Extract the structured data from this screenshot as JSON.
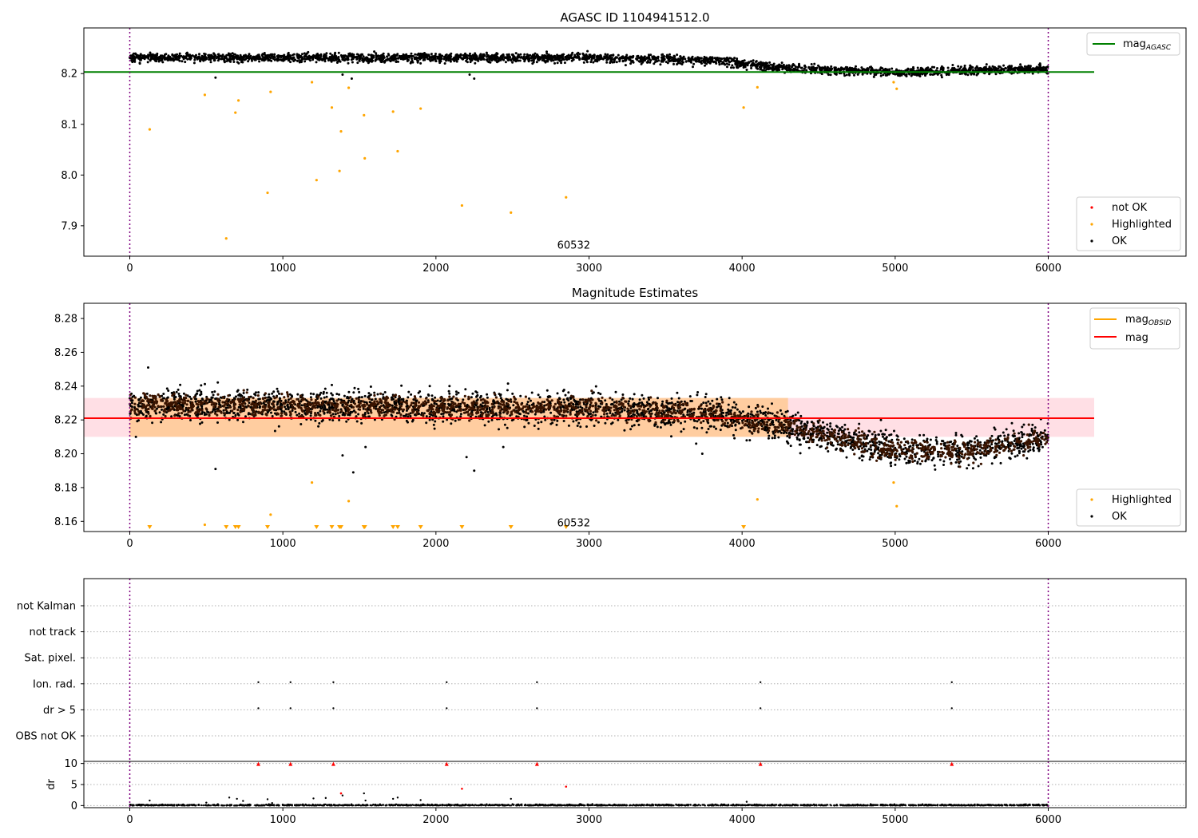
{
  "chart_data": [
    {
      "type": "scatter",
      "title": "AGASC ID 1104941512.0",
      "xlim": [
        -300,
        6900
      ],
      "ylim": [
        7.84,
        8.29
      ],
      "xticks": [
        "0",
        "1000",
        "2000",
        "3000",
        "4000",
        "5000",
        "6000"
      ],
      "yticks": [
        "7.9",
        "8.0",
        "8.1",
        "8.2"
      ],
      "ytick_values": [
        7.9,
        8.0,
        8.1,
        8.2
      ],
      "vlines": [
        0,
        6000
      ],
      "hline": {
        "name": "mag_AGASC",
        "value": 8.203,
        "x_range": [
          -300,
          6300
        ],
        "color": "#008000"
      },
      "annotation": {
        "text": "60532",
        "x": 2900,
        "y": 7.855
      },
      "ok_trend": [
        [
          0,
          8.232
        ],
        [
          3000,
          8.231
        ],
        [
          3800,
          8.226
        ],
        [
          4300,
          8.21
        ],
        [
          5000,
          8.203
        ],
        [
          6000,
          8.21
        ]
      ],
      "ok_outliers": [
        [
          560,
          8.192
        ],
        [
          1390,
          8.198
        ],
        [
          1450,
          8.19
        ],
        [
          2220,
          8.198
        ],
        [
          2250,
          8.19
        ]
      ],
      "series": [
        {
          "name": "not OK",
          "color": "#ff0000",
          "points": []
        },
        {
          "name": "Highlighted",
          "color": "#ffa500",
          "points": [
            [
              130,
              8.09
            ],
            [
              490,
              8.158
            ],
            [
              630,
              7.875
            ],
            [
              690,
              8.123
            ],
            [
              710,
              8.147
            ],
            [
              900,
              7.965
            ],
            [
              920,
              8.164
            ],
            [
              1190,
              8.183
            ],
            [
              1220,
              7.99
            ],
            [
              1320,
              8.133
            ],
            [
              1370,
              8.008
            ],
            [
              1380,
              8.086
            ],
            [
              1430,
              8.172
            ],
            [
              1530,
              8.118
            ],
            [
              1535,
              8.033
            ],
            [
              1720,
              8.125
            ],
            [
              1750,
              8.047
            ],
            [
              1900,
              8.131
            ],
            [
              2170,
              7.94
            ],
            [
              2490,
              7.926
            ],
            [
              2850,
              7.956
            ],
            [
              4010,
              8.133
            ],
            [
              4100,
              8.173
            ],
            [
              4990,
              8.183
            ],
            [
              5010,
              8.17
            ]
          ]
        },
        {
          "name": "OK",
          "color": "#000000",
          "points": []
        }
      ],
      "legend_upper": [
        "mag_AGASC"
      ],
      "legend_lower": [
        "not OK",
        "Highlighted",
        "OK"
      ]
    },
    {
      "type": "scatter",
      "title": "Magnitude Estimates",
      "xlim": [
        -300,
        6900
      ],
      "ylim": [
        8.154,
        8.289
      ],
      "xticks": [
        "0",
        "1000",
        "2000",
        "3000",
        "4000",
        "5000",
        "6000"
      ],
      "yticks": [
        "8.16",
        "8.18",
        "8.20",
        "8.22",
        "8.24",
        "8.26",
        "8.28"
      ],
      "ytick_values": [
        8.16,
        8.18,
        8.2,
        8.22,
        8.24,
        8.26,
        8.28
      ],
      "vlines": [
        0,
        6000
      ],
      "mag_line": {
        "name": "mag",
        "value": 8.221,
        "x_range": [
          -300,
          6300
        ],
        "color": "#ff0000"
      },
      "band": {
        "low": 8.21,
        "high": 8.233,
        "x_range": [
          -300,
          6300
        ]
      },
      "obsid_band": {
        "low": 8.21,
        "high": 8.233,
        "x_range": [
          0,
          4300
        ]
      },
      "annotation": {
        "text": "60532",
        "x": 2900,
        "y": 8.157
      },
      "ok_trend": [
        [
          0,
          8.229
        ],
        [
          3000,
          8.227
        ],
        [
          3800,
          8.224
        ],
        [
          4300,
          8.216
        ],
        [
          5000,
          8.202
        ],
        [
          5500,
          8.202
        ],
        [
          6000,
          8.21
        ]
      ],
      "ok_outliers": [
        [
          40,
          8.21
        ],
        [
          120,
          8.251
        ],
        [
          560,
          8.191
        ],
        [
          1390,
          8.199
        ],
        [
          1460,
          8.189
        ],
        [
          1540,
          8.204
        ],
        [
          2200,
          8.198
        ],
        [
          2250,
          8.19
        ],
        [
          2440,
          8.204
        ],
        [
          3700,
          8.206
        ],
        [
          3740,
          8.2
        ]
      ],
      "highlighted": [
        [
          490,
          8.158
        ],
        [
          920,
          8.164
        ],
        [
          1190,
          8.183
        ],
        [
          1430,
          8.172
        ],
        [
          4100,
          8.173
        ],
        [
          4990,
          8.183
        ],
        [
          5010,
          8.169
        ]
      ],
      "clipped_markers_x": [
        130,
        630,
        690,
        710,
        900,
        1220,
        1320,
        1370,
        1380,
        1530,
        1535,
        1720,
        1750,
        1900,
        2170,
        2490,
        2850,
        4010
      ],
      "legend_upper": [
        "mag_OBSID",
        "mag"
      ],
      "legend_lower": [
        "Highlighted",
        "OK"
      ]
    },
    {
      "type": "scatter",
      "xlim": [
        -300,
        6900
      ],
      "categories": [
        "not Kalman",
        "not track",
        "Sat. pixel.",
        "Ion. rad.",
        "dr > 5",
        "OBS not OK"
      ],
      "vlines": [
        0,
        6000
      ],
      "flag_points": {
        "Ion. rad.": [
          840,
          1050,
          1330,
          2070,
          2660,
          4120,
          5370
        ],
        "dr > 5": [
          840,
          1050,
          1330,
          2070,
          2660,
          4120,
          5370
        ]
      }
    },
    {
      "type": "scatter",
      "xlabel": "",
      "ylabel": "dr",
      "xlim": [
        -300,
        6900
      ],
      "ylim": [
        -0.5,
        10.5
      ],
      "xticks": [
        "0",
        "1000",
        "2000",
        "3000",
        "4000",
        "5000",
        "6000"
      ],
      "yticks": [
        "0",
        "5",
        "10"
      ],
      "ytick_values": [
        0,
        5,
        10
      ],
      "vlines": [
        0,
        6000
      ],
      "capped_red_markers_x": [
        840,
        1050,
        1330,
        2070,
        2660,
        4120,
        5370
      ],
      "red_points": [
        [
          1380,
          2.9
        ],
        [
          2170,
          4.0
        ],
        [
          2850,
          4.5
        ]
      ],
      "black_points": [
        [
          130,
          1.2
        ],
        [
          500,
          0.7
        ],
        [
          650,
          1.9
        ],
        [
          700,
          1.6
        ],
        [
          740,
          1.1
        ],
        [
          900,
          1.5
        ],
        [
          930,
          0.6
        ],
        [
          1200,
          1.7
        ],
        [
          1280,
          1.8
        ],
        [
          1390,
          2.4
        ],
        [
          1530,
          2.9
        ],
        [
          1540,
          1.2
        ],
        [
          1720,
          1.6
        ],
        [
          1750,
          1.9
        ],
        [
          1900,
          1.3
        ],
        [
          2490,
          1.6
        ],
        [
          4030,
          0.9
        ]
      ]
    }
  ]
}
